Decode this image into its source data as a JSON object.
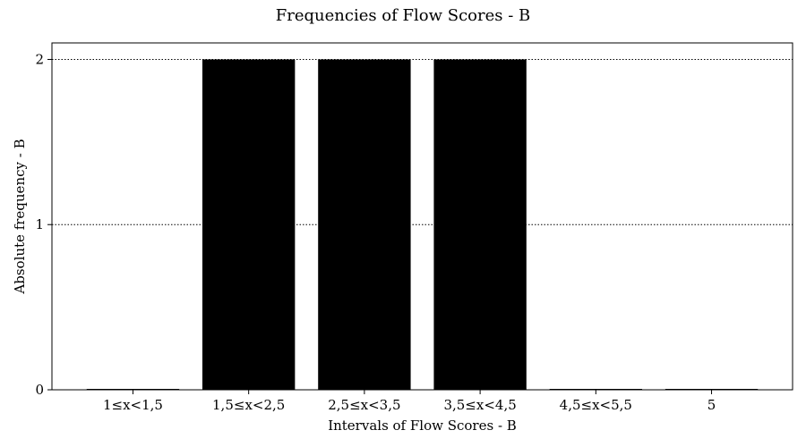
{
  "chart_data": {
    "type": "bar",
    "title": "Frequencies of Flow Scores - B",
    "xlabel": "Intervals of Flow Scores - B",
    "ylabel": "Absolute frequency - B",
    "categories": [
      "1≤x<1,5",
      "1,5≤x<2,5",
      "2,5≤x<3,5",
      "3,5≤x<4,5",
      "4,5≤x<5,5",
      "5"
    ],
    "values": [
      0,
      2,
      2,
      2,
      0,
      0
    ],
    "ylim": [
      0,
      2.1
    ],
    "yticks": [
      0,
      1,
      2
    ],
    "grid": "y-dotted",
    "bar_color": "#000000"
  }
}
